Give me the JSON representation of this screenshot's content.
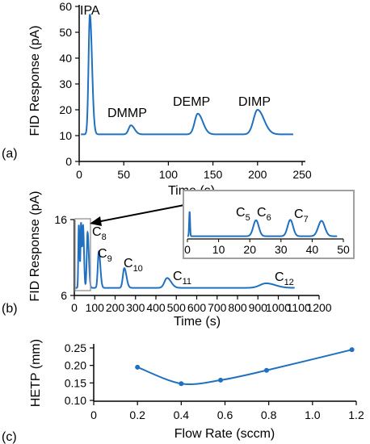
{
  "colors": {
    "trace": "#2070c0",
    "inset_border": "#a0a0a0",
    "axis": "#000000"
  },
  "chart_data": [
    {
      "id": "a",
      "type": "line",
      "panel_label": "(a)",
      "xlabel": "Time (s)",
      "ylabel": "FID Response (pA)",
      "xlim": [
        0,
        250
      ],
      "ylim": [
        0,
        60
      ],
      "xticks": [
        0,
        50,
        100,
        150,
        200,
        250
      ],
      "yticks": [
        0,
        10,
        20,
        30,
        40,
        50,
        60
      ],
      "baseline": 10.5,
      "peaks": [
        {
          "label": "IPA",
          "x": 12,
          "height": 57,
          "width": 1.5
        },
        {
          "label": "DMMP",
          "x": 58,
          "height": 14,
          "width": 2.5
        },
        {
          "label": "DEMP",
          "x": 133,
          "height": 18.5,
          "width": 3.5
        },
        {
          "label": "DIMP",
          "x": 200,
          "height": 20,
          "width": 4.5
        }
      ]
    },
    {
      "id": "b",
      "type": "line",
      "panel_label": "(b)",
      "xlabel": "Time (s)",
      "ylabel": "FID Response (pA)",
      "xlim": [
        0,
        1200
      ],
      "ylim": [
        6,
        16
      ],
      "xticks": [
        0,
        100,
        200,
        300,
        400,
        500,
        600,
        700,
        800,
        900,
        1000,
        1100,
        1200
      ],
      "yticks": [
        6,
        16
      ],
      "baseline": 7.0,
      "peaks": [
        {
          "label": "C",
          "sub": "5",
          "x": 22,
          "height": 15.3,
          "width": 2.5
        },
        {
          "label": "C",
          "sub": "6",
          "x": 33,
          "height": 15.5,
          "width": 2.5
        },
        {
          "label": "C",
          "sub": "7",
          "x": 43,
          "height": 15.0,
          "width": 3
        },
        {
          "label": "C",
          "sub": "8",
          "x": 65,
          "height": 14.3,
          "width": 4
        },
        {
          "label": "C",
          "sub": "9",
          "x": 120,
          "height": 11.8,
          "width": 5
        },
        {
          "label": "C",
          "sub": "10",
          "x": 245,
          "height": 9.6,
          "width": 7
        },
        {
          "label": "C",
          "sub": "11",
          "x": 455,
          "height": 8.3,
          "width": 13
        },
        {
          "label": "C",
          "sub": "12",
          "x": 940,
          "height": 7.6,
          "width": 30
        }
      ],
      "inset": {
        "xlim": [
          0,
          50
        ],
        "xticks": [
          0,
          10,
          20,
          30,
          40,
          50
        ],
        "labeled": [
          "C5",
          "C6",
          "C7"
        ]
      }
    },
    {
      "id": "c",
      "type": "line",
      "panel_label": "(c)",
      "xlabel": "Flow Rate (sccm)",
      "ylabel": "HETP (mm)",
      "xlim": [
        0,
        1.2
      ],
      "ylim": [
        0.1,
        0.25
      ],
      "xticks": [
        0,
        0.2,
        0.4,
        0.6,
        0.8,
        1.0,
        1.2
      ],
      "yticks": [
        0.1,
        0.15,
        0.2,
        0.25
      ],
      "points": [
        {
          "x": 0.2,
          "y": 0.195
        },
        {
          "x": 0.4,
          "y": 0.148
        },
        {
          "x": 0.58,
          "y": 0.158
        },
        {
          "x": 0.79,
          "y": 0.186
        },
        {
          "x": 1.18,
          "y": 0.245
        }
      ]
    }
  ]
}
